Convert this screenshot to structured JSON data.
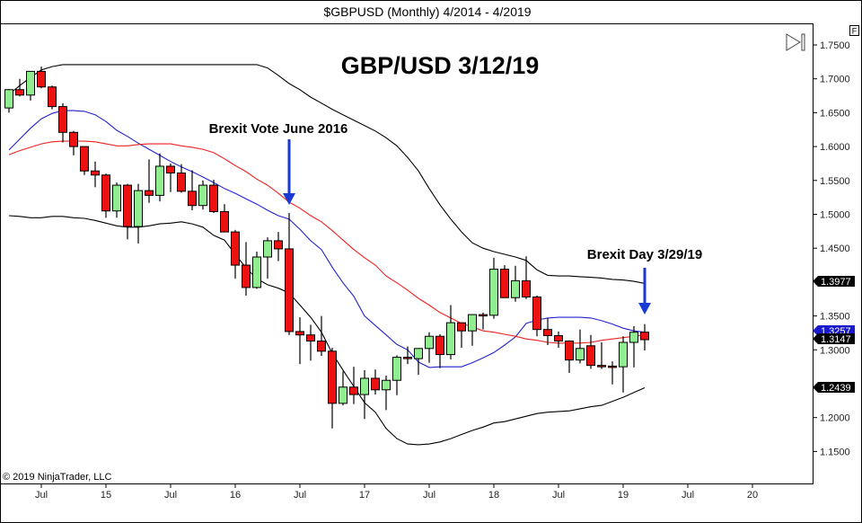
{
  "chart_data": {
    "type": "candlestick",
    "title": "$GBPUSD (Monthly)  4/2014 - 4/2019",
    "headline": "GBP/USD 3/12/19",
    "copyright": "© 2019 NinjaTrader, LLC",
    "ylim": [
      1.1,
      1.78
    ],
    "y_ticks": [
      "1.7500",
      "1.7000",
      "1.6500",
      "1.6000",
      "1.5500",
      "1.5000",
      "1.4500",
      "1.3500",
      "1.3000",
      "1.2000",
      "1.1500"
    ],
    "x_ticks": [
      {
        "label": "Jul",
        "month_index": 3
      },
      {
        "label": "15",
        "month_index": 9
      },
      {
        "label": "Jul",
        "month_index": 15
      },
      {
        "label": "16",
        "month_index": 21
      },
      {
        "label": "Jul",
        "month_index": 27
      },
      {
        "label": "17",
        "month_index": 33
      },
      {
        "label": "Jul",
        "month_index": 39
      },
      {
        "label": "18",
        "month_index": 45
      },
      {
        "label": "Jul",
        "month_index": 51
      },
      {
        "label": "19",
        "month_index": 57
      },
      {
        "label": "Jul",
        "month_index": 63
      },
      {
        "label": "20",
        "month_index": 69
      }
    ],
    "candles_ohlc": [
      [
        1.657,
        1.685,
        1.65,
        1.684
      ],
      [
        1.684,
        1.7,
        1.674,
        1.676
      ],
      [
        1.676,
        1.711,
        1.668,
        1.711
      ],
      [
        1.711,
        1.718,
        1.686,
        1.688
      ],
      [
        1.688,
        1.69,
        1.655,
        1.659
      ],
      [
        1.659,
        1.664,
        1.606,
        1.621
      ],
      [
        1.621,
        1.623,
        1.587,
        1.6
      ],
      [
        1.6,
        1.6,
        1.558,
        1.564
      ],
      [
        1.564,
        1.578,
        1.54,
        1.558
      ],
      [
        1.558,
        1.56,
        1.495,
        1.505
      ],
      [
        1.505,
        1.547,
        1.495,
        1.543
      ],
      [
        1.543,
        1.545,
        1.463,
        1.482
      ],
      [
        1.482,
        1.545,
        1.457,
        1.535
      ],
      [
        1.535,
        1.581,
        1.517,
        1.528
      ],
      [
        1.528,
        1.59,
        1.519,
        1.571
      ],
      [
        1.571,
        1.575,
        1.533,
        1.561
      ],
      [
        1.561,
        1.574,
        1.532,
        1.534
      ],
      [
        1.534,
        1.565,
        1.506,
        1.513
      ],
      [
        1.513,
        1.55,
        1.507,
        1.543
      ],
      [
        1.543,
        1.551,
        1.502,
        1.504
      ],
      [
        1.504,
        1.515,
        1.476,
        1.474
      ],
      [
        1.474,
        1.477,
        1.405,
        1.425
      ],
      [
        1.425,
        1.459,
        1.38,
        1.392
      ],
      [
        1.392,
        1.445,
        1.39,
        1.437
      ],
      [
        1.437,
        1.466,
        1.405,
        1.461
      ],
      [
        1.461,
        1.474,
        1.431,
        1.449
      ],
      [
        1.449,
        1.502,
        1.322,
        1.327
      ],
      [
        1.327,
        1.348,
        1.279,
        1.322
      ],
      [
        1.322,
        1.337,
        1.284,
        1.313
      ],
      [
        1.313,
        1.35,
        1.291,
        1.298
      ],
      [
        1.298,
        1.303,
        1.184,
        1.221
      ],
      [
        1.221,
        1.268,
        1.218,
        1.245
      ],
      [
        1.245,
        1.275,
        1.22,
        1.234
      ],
      [
        1.234,
        1.27,
        1.198,
        1.258
      ],
      [
        1.258,
        1.271,
        1.234,
        1.241
      ],
      [
        1.241,
        1.262,
        1.211,
        1.255
      ],
      [
        1.255,
        1.292,
        1.233,
        1.289
      ],
      [
        1.289,
        1.305,
        1.279,
        1.287
      ],
      [
        1.287,
        1.301,
        1.263,
        1.302
      ],
      [
        1.302,
        1.326,
        1.281,
        1.32
      ],
      [
        1.32,
        1.323,
        1.273,
        1.293
      ],
      [
        1.293,
        1.366,
        1.286,
        1.34
      ],
      [
        1.34,
        1.34,
        1.303,
        1.328
      ],
      [
        1.328,
        1.351,
        1.306,
        1.352
      ],
      [
        1.352,
        1.355,
        1.33,
        1.351
      ],
      [
        1.351,
        1.436,
        1.346,
        1.419
      ],
      [
        1.419,
        1.425,
        1.377,
        1.377
      ],
      [
        1.377,
        1.424,
        1.371,
        1.402
      ],
      [
        1.402,
        1.438,
        1.375,
        1.378
      ],
      [
        1.378,
        1.38,
        1.32,
        1.33
      ],
      [
        1.33,
        1.347,
        1.307,
        1.321
      ],
      [
        1.321,
        1.327,
        1.303,
        1.313
      ],
      [
        1.313,
        1.314,
        1.266,
        1.285
      ],
      [
        1.285,
        1.33,
        1.28,
        1.302
      ],
      [
        1.306,
        1.322,
        1.272,
        1.277
      ],
      [
        1.277,
        1.311,
        1.272,
        1.276
      ],
      [
        1.276,
        1.283,
        1.249,
        1.274
      ],
      [
        1.275,
        1.32,
        1.237,
        1.311
      ],
      [
        1.311,
        1.335,
        1.274,
        1.326
      ],
      [
        1.326,
        1.338,
        1.299,
        1.315
      ]
    ],
    "series": [
      {
        "name": "upper band",
        "color": "#000000",
        "values": [
          1.677,
          1.69,
          1.702,
          1.713,
          1.718,
          1.721,
          1.721,
          1.721,
          1.721,
          1.721,
          1.721,
          1.721,
          1.721,
          1.721,
          1.721,
          1.721,
          1.721,
          1.721,
          1.721,
          1.721,
          1.721,
          1.721,
          1.721,
          1.721,
          1.716,
          1.705,
          1.693,
          1.684,
          1.673,
          1.664,
          1.655,
          1.647,
          1.639,
          1.631,
          1.623,
          1.613,
          1.601,
          1.584,
          1.564,
          1.538,
          1.514,
          1.493,
          1.474,
          1.458,
          1.45,
          1.445,
          1.441,
          1.437,
          1.432,
          1.418,
          1.41,
          1.409,
          1.409,
          1.408,
          1.407,
          1.406,
          1.404,
          1.403,
          1.401,
          1.398
        ]
      },
      {
        "name": "lower band",
        "color": "#000000",
        "values": [
          1.498,
          1.497,
          1.495,
          1.495,
          1.497,
          1.497,
          1.495,
          1.494,
          1.491,
          1.487,
          1.483,
          1.481,
          1.481,
          1.483,
          1.486,
          1.487,
          1.489,
          1.486,
          1.481,
          1.469,
          1.462,
          1.441,
          1.421,
          1.405,
          1.396,
          1.391,
          1.384,
          1.366,
          1.348,
          1.326,
          1.295,
          1.27,
          1.246,
          1.222,
          1.208,
          1.184,
          1.169,
          1.161,
          1.16,
          1.161,
          1.164,
          1.169,
          1.175,
          1.181,
          1.186,
          1.192,
          1.194,
          1.198,
          1.202,
          1.206,
          1.208,
          1.209,
          1.21,
          1.213,
          1.216,
          1.218,
          1.224,
          1.23,
          1.237,
          1.244
        ]
      },
      {
        "name": "blue moving average",
        "color": "#2222cc",
        "values": [
          1.595,
          1.611,
          1.627,
          1.641,
          1.649,
          1.653,
          1.653,
          1.652,
          1.647,
          1.637,
          1.624,
          1.615,
          1.605,
          1.596,
          1.587,
          1.578,
          1.57,
          1.563,
          1.555,
          1.547,
          1.538,
          1.531,
          1.523,
          1.515,
          1.506,
          1.498,
          1.493,
          1.478,
          1.461,
          1.448,
          1.422,
          1.399,
          1.379,
          1.35,
          1.336,
          1.322,
          1.308,
          1.3,
          1.282,
          1.274,
          1.275,
          1.275,
          1.275,
          1.281,
          1.288,
          1.296,
          1.307,
          1.319,
          1.339,
          1.344,
          1.347,
          1.348,
          1.348,
          1.348,
          1.347,
          1.343,
          1.338,
          1.332,
          1.328,
          1.326
        ]
      },
      {
        "name": "red moving average",
        "color": "#ee2222",
        "values": [
          1.588,
          1.594,
          1.599,
          1.604,
          1.607,
          1.608,
          1.608,
          1.608,
          1.607,
          1.604,
          1.601,
          1.601,
          1.603,
          1.604,
          1.604,
          1.604,
          1.601,
          1.599,
          1.596,
          1.591,
          1.582,
          1.572,
          1.563,
          1.552,
          1.543,
          1.531,
          1.518,
          1.509,
          1.498,
          1.489,
          1.476,
          1.462,
          1.448,
          1.436,
          1.425,
          1.409,
          1.399,
          1.388,
          1.376,
          1.366,
          1.355,
          1.347,
          1.339,
          1.334,
          1.328,
          1.326,
          1.323,
          1.32,
          1.316,
          1.314,
          1.311,
          1.31,
          1.31,
          1.31,
          1.311,
          1.314,
          1.316,
          1.318,
          1.32,
          1.322
        ]
      }
    ],
    "price_labels": [
      {
        "value": "1.3977",
        "color": "#000000"
      },
      {
        "value": "1.3257",
        "color": "#1a1acc"
      },
      {
        "value": "1.3147",
        "color": "#000000"
      },
      {
        "value": "1.2439",
        "color": "#000000"
      }
    ],
    "annotations": [
      {
        "text": "Brexit Vote June 2016",
        "month_index": 26
      },
      {
        "text": "Brexit Day 3/29/19",
        "month_index": 59
      }
    ],
    "colors": {
      "up": "#90ee90",
      "down": "#ee1111",
      "arrow": "#1a3ad6"
    },
    "toolbar_label": "F"
  }
}
